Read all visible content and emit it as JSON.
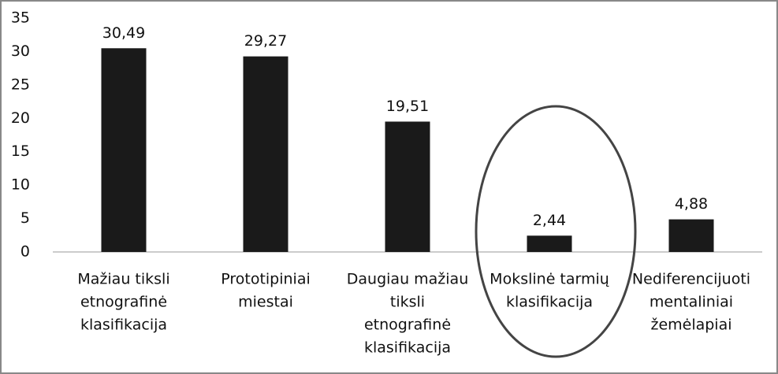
{
  "chart_data": {
    "type": "bar",
    "categories": [
      [
        "Mažiau tiksli",
        "etnografinė",
        "klasifikacija"
      ],
      [
        "Prototipiniai",
        "miestai"
      ],
      [
        "Daugiau mažiau",
        "tiksli",
        "etnografinė",
        "klasifikacija"
      ],
      [
        "Mokslinė tarmių",
        "klasifikacija"
      ],
      [
        "Nediferencijuoti",
        "mentaliniai",
        "žemėlapiai"
      ]
    ],
    "values": [
      30.49,
      29.27,
      19.51,
      2.44,
      4.88
    ],
    "value_labels": [
      "30,49",
      "29,27",
      "19,51",
      "2,44",
      "4,88"
    ],
    "color": "#1a1a1a",
    "ylim": [
      0,
      35
    ],
    "yticks": [
      0,
      5,
      10,
      15,
      20,
      25,
      30,
      35
    ],
    "grid": false
  }
}
